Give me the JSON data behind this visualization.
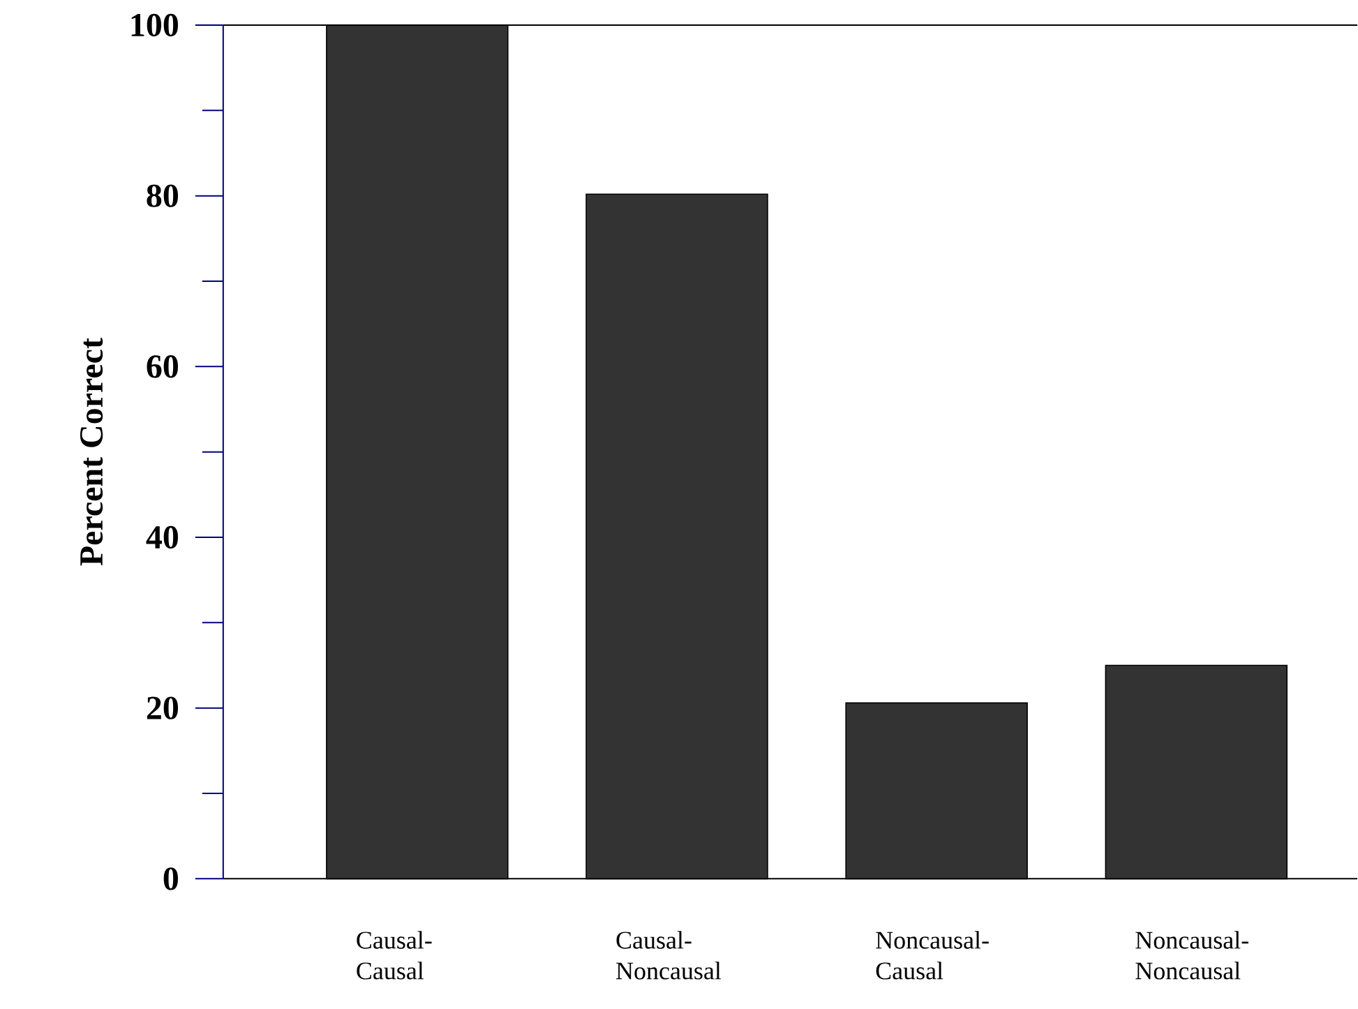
{
  "chart_data": {
    "type": "bar",
    "ylabel": "Percent Correct",
    "categories": [
      "Causal-Causal",
      "Causal-Noncausal",
      "Noncausal-Causal",
      "Noncausal-Noncausal"
    ],
    "values": [
      100,
      80.2,
      20.6,
      25.0
    ],
    "color": "#333333",
    "ylim": [
      0,
      100
    ],
    "yticks": [
      0,
      {
        "value": 10,
        "label": null
      },
      20,
      {
        "value": 30,
        "label": null
      },
      40,
      {
        "value": 50,
        "label": null
      },
      60,
      {
        "value": 70,
        "label": null
      },
      80,
      {
        "value": 90,
        "label": null
      },
      100
    ]
  }
}
